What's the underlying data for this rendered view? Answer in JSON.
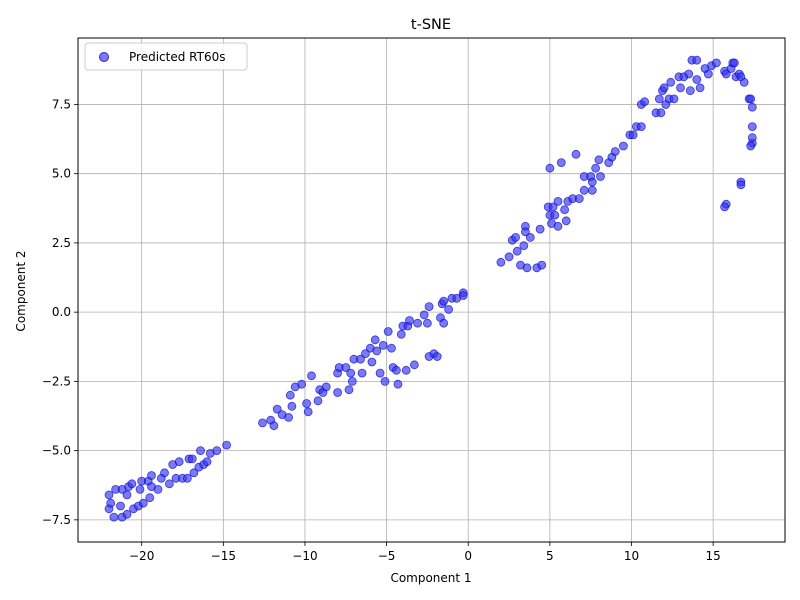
{
  "chart_data": {
    "type": "scatter",
    "title": "t-SNE",
    "xlabel": "Component 1",
    "ylabel": "Component 2",
    "xlim": [
      -23.9,
      19.4
    ],
    "ylim": [
      -8.3,
      9.9
    ],
    "xticks": [
      -20,
      -15,
      -10,
      -5,
      0,
      5,
      10,
      15
    ],
    "yticks": [
      -7.5,
      -5.0,
      -2.5,
      0.0,
      2.5,
      5.0,
      7.5
    ],
    "xtick_labels": [
      "−20",
      "−15",
      "−10",
      "−5",
      "0",
      "5",
      "10",
      "15"
    ],
    "ytick_labels": [
      "−7.5",
      "−5.0",
      "−2.5",
      "0.0",
      "2.5",
      "5.0",
      "7.5"
    ],
    "grid": true,
    "legend_position": "upper-left",
    "colors": {
      "marker": "#3333ee",
      "marker_edge": "#0000cc"
    },
    "series": [
      {
        "name": "Predicted RT60s",
        "points": [
          [
            -22.0,
            -6.6
          ],
          [
            -22.0,
            -7.1
          ],
          [
            -21.9,
            -6.9
          ],
          [
            -21.7,
            -7.4
          ],
          [
            -21.6,
            -6.4
          ],
          [
            -21.3,
            -7.0
          ],
          [
            -21.2,
            -6.4
          ],
          [
            -21.2,
            -7.4
          ],
          [
            -20.9,
            -6.6
          ],
          [
            -20.9,
            -7.3
          ],
          [
            -20.8,
            -6.3
          ],
          [
            -20.6,
            -6.2
          ],
          [
            -20.5,
            -7.1
          ],
          [
            -20.2,
            -7.0
          ],
          [
            -20.1,
            -6.4
          ],
          [
            -20.0,
            -6.1
          ],
          [
            -19.9,
            -6.9
          ],
          [
            -19.6,
            -6.1
          ],
          [
            -19.5,
            -6.7
          ],
          [
            -19.4,
            -6.3
          ],
          [
            -19.4,
            -5.9
          ],
          [
            -19.0,
            -6.4
          ],
          [
            -18.8,
            -6.0
          ],
          [
            -18.6,
            -5.8
          ],
          [
            -18.3,
            -6.2
          ],
          [
            -18.1,
            -5.5
          ],
          [
            -17.9,
            -6.0
          ],
          [
            -17.7,
            -5.4
          ],
          [
            -17.5,
            -6.0
          ],
          [
            -17.2,
            -6.0
          ],
          [
            -17.1,
            -5.3
          ],
          [
            -16.9,
            -5.3
          ],
          [
            -16.8,
            -5.8
          ],
          [
            -16.5,
            -5.6
          ],
          [
            -16.2,
            -5.5
          ],
          [
            -16.0,
            -5.4
          ],
          [
            -16.4,
            -5.0
          ],
          [
            -15.8,
            -5.1
          ],
          [
            -15.4,
            -5.0
          ],
          [
            -14.8,
            -4.8
          ],
          [
            -12.6,
            -4.0
          ],
          [
            -12.1,
            -3.9
          ],
          [
            -11.9,
            -4.1
          ],
          [
            -11.7,
            -3.5
          ],
          [
            -11.4,
            -3.7
          ],
          [
            -11.0,
            -3.8
          ],
          [
            -10.9,
            -3.0
          ],
          [
            -10.8,
            -3.4
          ],
          [
            -10.6,
            -2.7
          ],
          [
            -10.2,
            -2.6
          ],
          [
            -9.9,
            -3.3
          ],
          [
            -9.8,
            -3.6
          ],
          [
            -9.6,
            -2.3
          ],
          [
            -9.2,
            -3.2
          ],
          [
            -9.1,
            -2.8
          ],
          [
            -8.9,
            -2.9
          ],
          [
            -8.7,
            -2.7
          ],
          [
            -8.0,
            -2.9
          ],
          [
            -8.0,
            -2.2
          ],
          [
            -7.9,
            -2.0
          ],
          [
            -7.5,
            -2.0
          ],
          [
            -7.3,
            -2.8
          ],
          [
            -7.2,
            -2.2
          ],
          [
            -7.1,
            -2.5
          ],
          [
            -7.0,
            -1.7
          ],
          [
            -6.6,
            -1.7
          ],
          [
            -6.5,
            -2.2
          ],
          [
            -6.3,
            -1.5
          ],
          [
            -6.0,
            -1.3
          ],
          [
            -5.9,
            -1.8
          ],
          [
            -5.7,
            -1.0
          ],
          [
            -5.6,
            -1.4
          ],
          [
            -5.4,
            -2.2
          ],
          [
            -5.2,
            -1.2
          ],
          [
            -5.1,
            -2.5
          ],
          [
            -4.9,
            -0.7
          ],
          [
            -4.7,
            -1.3
          ],
          [
            -4.6,
            -2.0
          ],
          [
            -4.4,
            -2.1
          ],
          [
            -4.3,
            -2.6
          ],
          [
            -4.1,
            -0.8
          ],
          [
            -4.0,
            -0.5
          ],
          [
            -3.8,
            -2.1
          ],
          [
            -3.7,
            -0.5
          ],
          [
            -3.6,
            -0.3
          ],
          [
            -3.3,
            -1.9
          ],
          [
            -3.1,
            -0.4
          ],
          [
            -2.7,
            -0.1
          ],
          [
            -2.5,
            -0.4
          ],
          [
            -2.4,
            0.2
          ],
          [
            -2.4,
            -1.6
          ],
          [
            -2.1,
            -1.5
          ],
          [
            -1.9,
            -1.6
          ],
          [
            -1.7,
            -0.2
          ],
          [
            -1.6,
            0.3
          ],
          [
            -1.5,
            0.4
          ],
          [
            -1.5,
            -0.4
          ],
          [
            -1.2,
            0.1
          ],
          [
            -1.0,
            0.5
          ],
          [
            -0.7,
            0.5
          ],
          [
            -0.3,
            0.7
          ],
          [
            -0.3,
            0.6
          ],
          [
            2.0,
            1.8
          ],
          [
            2.5,
            2.0
          ],
          [
            2.7,
            2.6
          ],
          [
            2.9,
            2.7
          ],
          [
            3.0,
            2.2
          ],
          [
            3.2,
            1.7
          ],
          [
            3.4,
            2.4
          ],
          [
            3.5,
            3.1
          ],
          [
            3.5,
            2.9
          ],
          [
            3.6,
            1.6
          ],
          [
            3.8,
            2.7
          ],
          [
            4.2,
            1.6
          ],
          [
            4.4,
            3.0
          ],
          [
            4.5,
            1.7
          ],
          [
            4.9,
            3.8
          ],
          [
            5.0,
            3.5
          ],
          [
            5.0,
            5.2
          ],
          [
            5.1,
            3.2
          ],
          [
            5.2,
            3.8
          ],
          [
            5.3,
            3.5
          ],
          [
            5.5,
            3.1
          ],
          [
            5.5,
            4.0
          ],
          [
            5.7,
            5.4
          ],
          [
            5.9,
            3.7
          ],
          [
            6.0,
            3.3
          ],
          [
            6.1,
            4.0
          ],
          [
            6.4,
            4.1
          ],
          [
            6.6,
            5.7
          ],
          [
            6.8,
            4.1
          ],
          [
            7.1,
            4.9
          ],
          [
            7.1,
            4.4
          ],
          [
            7.5,
            4.9
          ],
          [
            7.6,
            4.4
          ],
          [
            7.6,
            4.7
          ],
          [
            7.8,
            5.2
          ],
          [
            8.0,
            5.5
          ],
          [
            8.1,
            4.9
          ],
          [
            8.6,
            5.4
          ],
          [
            8.8,
            5.6
          ],
          [
            9.0,
            5.8
          ],
          [
            9.5,
            6.0
          ],
          [
            9.9,
            6.4
          ],
          [
            10.1,
            6.4
          ],
          [
            10.3,
            6.7
          ],
          [
            10.6,
            6.7
          ],
          [
            10.6,
            7.5
          ],
          [
            10.8,
            7.6
          ],
          [
            11.5,
            7.2
          ],
          [
            11.7,
            7.7
          ],
          [
            11.8,
            7.2
          ],
          [
            11.9,
            8.0
          ],
          [
            12.0,
            8.1
          ],
          [
            12.1,
            7.5
          ],
          [
            12.3,
            7.7
          ],
          [
            12.4,
            8.3
          ],
          [
            12.6,
            7.7
          ],
          [
            12.9,
            8.5
          ],
          [
            13.0,
            8.1
          ],
          [
            13.2,
            8.5
          ],
          [
            13.5,
            8.6
          ],
          [
            13.6,
            8.0
          ],
          [
            13.7,
            9.1
          ],
          [
            14.0,
            9.1
          ],
          [
            14.0,
            8.4
          ],
          [
            14.2,
            8.1
          ],
          [
            14.5,
            8.8
          ],
          [
            14.7,
            8.6
          ],
          [
            14.9,
            8.9
          ],
          [
            15.2,
            9.0
          ],
          [
            15.7,
            8.7
          ],
          [
            15.8,
            8.6
          ],
          [
            16.1,
            8.8
          ],
          [
            16.2,
            9.0
          ],
          [
            16.3,
            9.0
          ],
          [
            16.4,
            8.5
          ],
          [
            16.6,
            8.6
          ],
          [
            16.7,
            8.5
          ],
          [
            16.9,
            8.3
          ],
          [
            17.2,
            7.7
          ],
          [
            17.3,
            7.7
          ],
          [
            17.4,
            7.4
          ],
          [
            17.4,
            6.7
          ],
          [
            17.4,
            6.1
          ],
          [
            17.4,
            6.3
          ],
          [
            17.3,
            6.0
          ],
          [
            16.7,
            4.7
          ],
          [
            16.7,
            4.6
          ],
          [
            15.8,
            3.9
          ],
          [
            15.7,
            3.8
          ]
        ]
      }
    ]
  }
}
